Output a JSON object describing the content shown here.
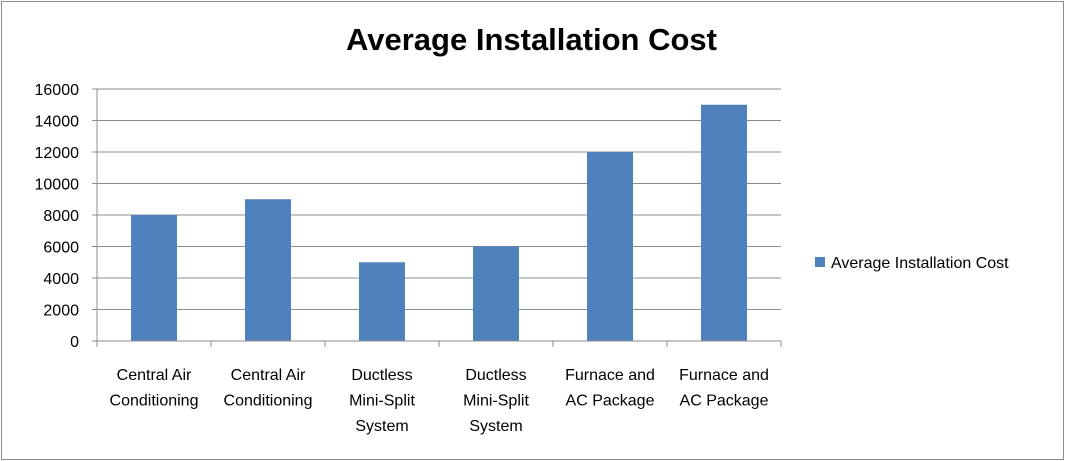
{
  "chart_data": {
    "type": "bar",
    "title": "Average Installation Cost",
    "categories": [
      [
        "Central Air",
        "Conditioning"
      ],
      [
        "Central Air",
        "Conditioning"
      ],
      [
        "Ductless",
        "Mini-Split",
        "System"
      ],
      [
        "Ductless",
        "Mini-Split",
        "System"
      ],
      [
        "Furnace and",
        "AC Package"
      ],
      [
        "Furnace and",
        "AC Package"
      ]
    ],
    "series": [
      {
        "name": "Average Installation Cost",
        "values": [
          8000,
          9000,
          5000,
          6000,
          12000,
          15000
        ],
        "color": "#4f81bd"
      }
    ],
    "ylim": [
      0,
      16000
    ],
    "yticks": [
      0,
      2000,
      4000,
      6000,
      8000,
      10000,
      12000,
      14000,
      16000
    ],
    "grid": true,
    "legend_position": "right"
  }
}
